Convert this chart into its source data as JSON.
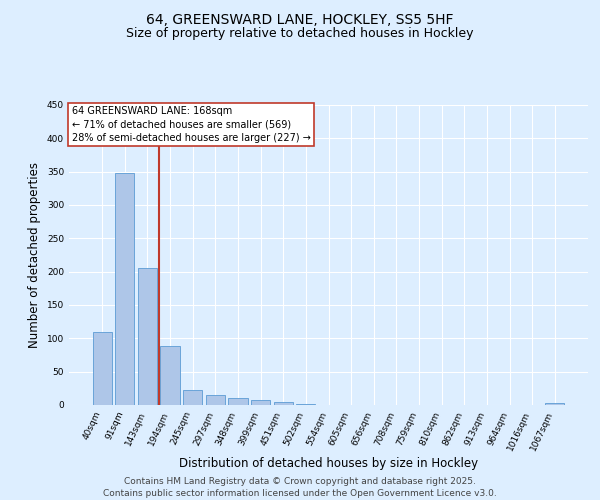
{
  "title": "64, GREENSWARD LANE, HOCKLEY, SS5 5HF",
  "subtitle": "Size of property relative to detached houses in Hockley",
  "xlabel": "Distribution of detached houses by size in Hockley",
  "ylabel": "Number of detached properties",
  "bar_labels": [
    "40sqm",
    "91sqm",
    "143sqm",
    "194sqm",
    "245sqm",
    "297sqm",
    "348sqm",
    "399sqm",
    "451sqm",
    "502sqm",
    "554sqm",
    "605sqm",
    "656sqm",
    "708sqm",
    "759sqm",
    "810sqm",
    "862sqm",
    "913sqm",
    "964sqm",
    "1016sqm",
    "1067sqm"
  ],
  "bar_values": [
    110,
    348,
    205,
    88,
    23,
    15,
    10,
    7,
    5,
    2,
    0,
    0,
    0,
    0,
    0,
    0,
    0,
    0,
    0,
    0,
    3
  ],
  "bar_color": "#aec6e8",
  "bar_edge_color": "#5b9bd5",
  "vline_x": 2.53,
  "vline_color": "#c0392b",
  "annotation_text": "64 GREENSWARD LANE: 168sqm\n← 71% of detached houses are smaller (569)\n28% of semi-detached houses are larger (227) →",
  "annotation_box_color": "#ffffff",
  "annotation_box_edge": "#c0392b",
  "ylim": [
    0,
    450
  ],
  "background_color": "#ddeeff",
  "grid_color": "#ffffff",
  "footer": "Contains HM Land Registry data © Crown copyright and database right 2025.\nContains public sector information licensed under the Open Government Licence v3.0.",
  "title_fontsize": 10,
  "subtitle_fontsize": 9,
  "label_fontsize": 8.5,
  "tick_fontsize": 6.5,
  "annotation_fontsize": 7,
  "footer_fontsize": 6.5
}
